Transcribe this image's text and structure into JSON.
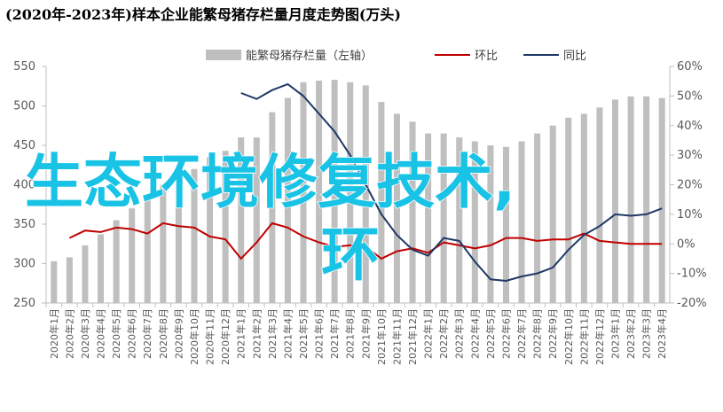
{
  "chart_data": {
    "type": "bar-line",
    "title": "(2020年-2023年)样本企业能繁母猪存栏量月度走势图(万头)",
    "categories": [
      "2020年1月",
      "2020年2月",
      "2020年3月",
      "2020年4月",
      "2020年5月",
      "2020年6月",
      "2020年7月",
      "2020年8月",
      "2020年9月",
      "2020年10月",
      "2020年11月",
      "2020年12月",
      "2021年1月",
      "2021年2月",
      "2021年3月",
      "2021年4月",
      "2021年5月",
      "2021年6月",
      "2021年7月",
      "2021年8月",
      "2021年9月",
      "2021年10月",
      "2021年11月",
      "2021年12月",
      "2022年1月",
      "2022年2月",
      "2022年3月",
      "2022年4月",
      "2022年5月",
      "2022年6月",
      "2022年7月",
      "2022年8月",
      "2022年9月",
      "2022年10月",
      "2022年11月",
      "2022年12月",
      "2023年1月",
      "2023年2月",
      "2023年3月",
      "2023年4月"
    ],
    "series": [
      {
        "name": "能繁母猪存栏量（左轴）",
        "color": "#bfbfbf",
        "type": "bar",
        "values": [
          303,
          308,
          323,
          337,
          355,
          370,
          385,
          400,
          410,
          420,
          435,
          443,
          460,
          460,
          492,
          510,
          530,
          532,
          533,
          530,
          526,
          505,
          490,
          480,
          465,
          465,
          460,
          455,
          450,
          448,
          455,
          465,
          475,
          485,
          490,
          498,
          508,
          512,
          512,
          510
        ]
      },
      {
        "name": "环比",
        "color": "#c00000",
        "type": "line",
        "axis": "y2",
        "values": [
          null,
          2,
          4.5,
          4,
          5.5,
          5,
          3.5,
          7,
          6,
          5.5,
          2.5,
          1.5,
          -5,
          0.5,
          7,
          5.5,
          2.5,
          0.5,
          -1,
          -0.5,
          -1,
          -5,
          -2.5,
          -1.5,
          -3,
          0.5,
          -0.5,
          -1.5,
          -0.5,
          2,
          2,
          1,
          1.5,
          1.5,
          3.5,
          1,
          0.5,
          0,
          0,
          0
        ]
      },
      {
        "name": "同比",
        "color": "#1f3864",
        "type": "line",
        "axis": "y2",
        "values": [
          null,
          null,
          null,
          null,
          null,
          null,
          null,
          null,
          null,
          null,
          null,
          null,
          51,
          49,
          52,
          54,
          50,
          44,
          38,
          30,
          20,
          10,
          3,
          -2,
          -4,
          2,
          1,
          -6,
          -12,
          -12.5,
          -11,
          -10,
          -8,
          -2,
          3,
          6,
          10,
          9.5,
          10,
          12
        ]
      }
    ],
    "ylim": [
      250,
      550
    ],
    "yticks": [
      250,
      300,
      350,
      400,
      450,
      500,
      550
    ],
    "y2lim": [
      -20,
      60
    ],
    "y2ticks": [
      {
        "value": -20,
        "label": "-20%"
      },
      {
        "value": -10,
        "label": "-10%"
      },
      {
        "value": 0,
        "label": "0%"
      },
      {
        "value": 10,
        "label": "10%"
      },
      {
        "value": 20,
        "label": "20%"
      },
      {
        "value": 30,
        "label": "30%"
      },
      {
        "value": 40,
        "label": "40%"
      },
      {
        "value": 50,
        "label": "50%"
      },
      {
        "value": 60,
        "label": "60%"
      }
    ],
    "overlay_text": [
      "生态环境修复技术,",
      "环"
    ]
  }
}
